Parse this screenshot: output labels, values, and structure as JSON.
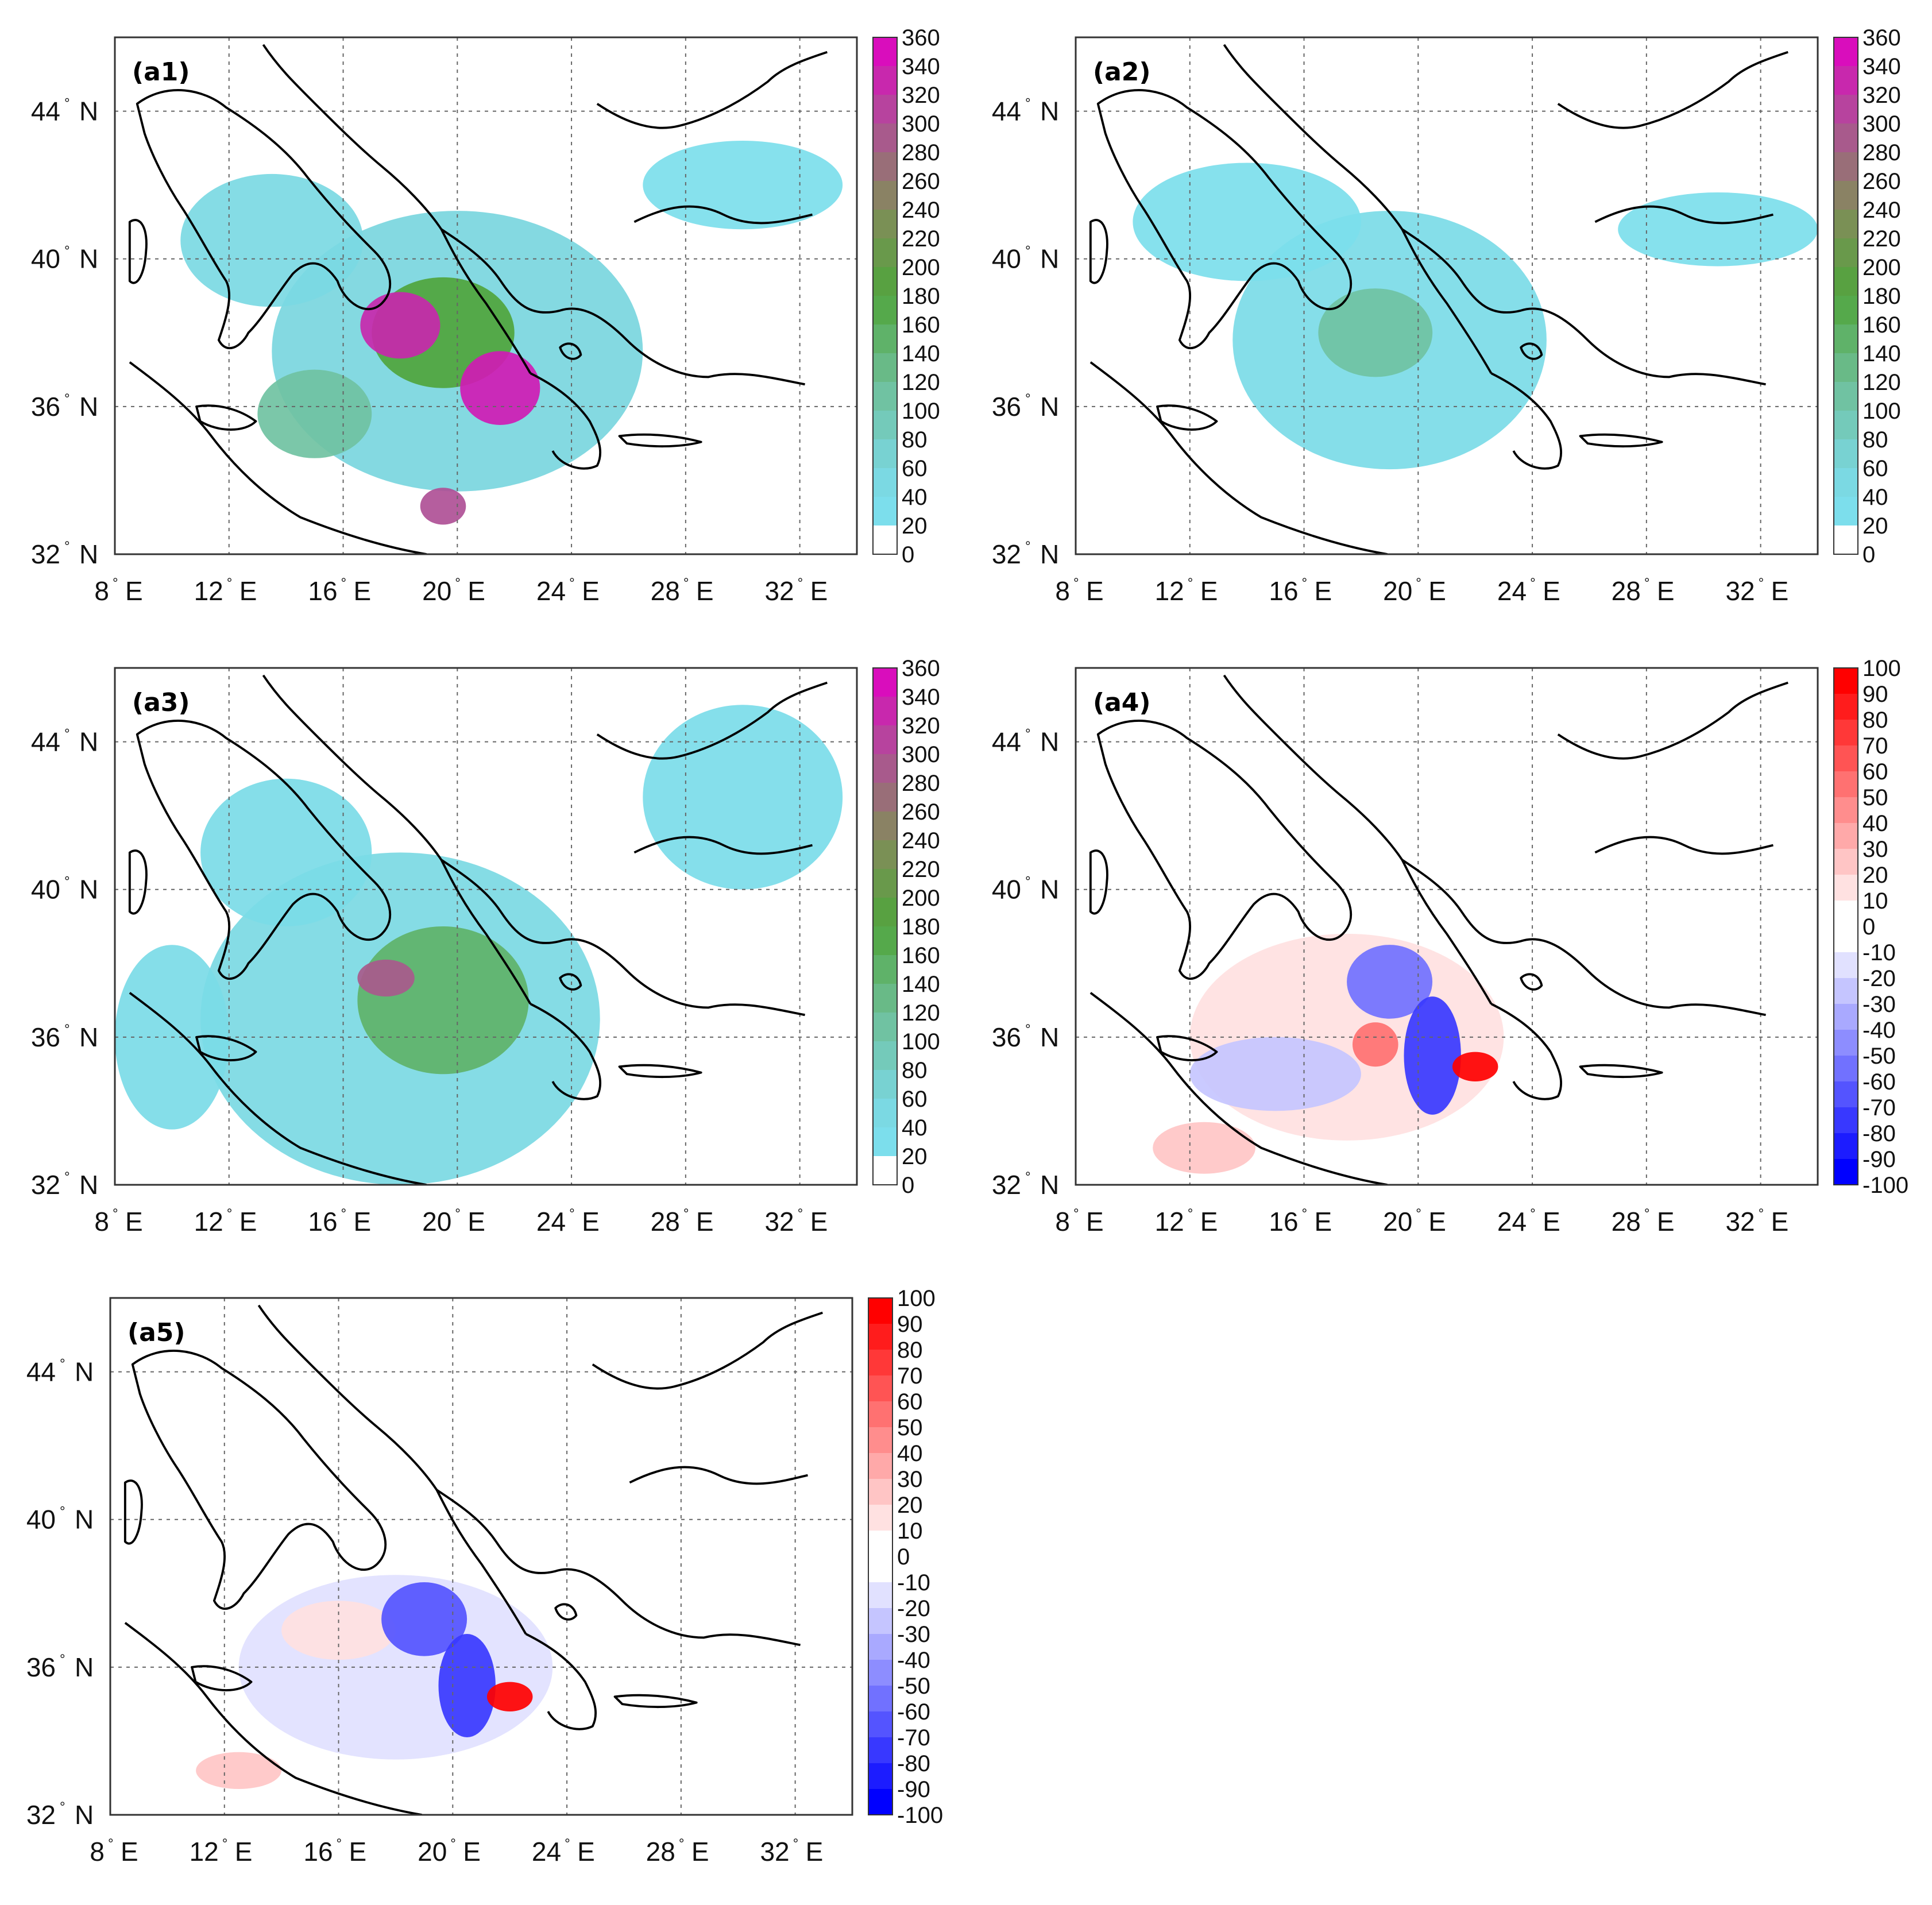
{
  "chart_data": [
    {
      "type": "heatmap",
      "label": "(a1)",
      "xlim": [
        8,
        34
      ],
      "ylim": [
        32,
        46
      ],
      "xticks": [
        {
          "v": 8,
          "text": "8",
          "unit": "E"
        },
        {
          "v": 12,
          "text": "12",
          "unit": "E"
        },
        {
          "v": 16,
          "text": "16",
          "unit": "E"
        },
        {
          "v": 20,
          "text": "20",
          "unit": "E"
        },
        {
          "v": 24,
          "text": "24",
          "unit": "E"
        },
        {
          "v": 28,
          "text": "28",
          "unit": "E"
        },
        {
          "v": 32,
          "text": "32",
          "unit": "E"
        }
      ],
      "yticks": [
        {
          "v": 32,
          "text": "32",
          "unit": "N"
        },
        {
          "v": 36,
          "text": "36",
          "unit": "N"
        },
        {
          "v": 40,
          "text": "40",
          "unit": "N"
        },
        {
          "v": 44,
          "text": "44",
          "unit": "N"
        }
      ],
      "colorbar": {
        "min": 0,
        "max": 360,
        "ticks": [
          "360",
          "340",
          "320",
          "300",
          "280",
          "260",
          "240",
          "220",
          "200",
          "180",
          "160",
          "140",
          "120",
          "100",
          "80",
          "60",
          "40",
          "20",
          "0"
        ],
        "scheme": "precip"
      },
      "features": [
        {
          "lon": 20.0,
          "lat": 37.5,
          "rx": 6.5,
          "ry": 3.8,
          "value": 60
        },
        {
          "lon": 13.5,
          "lat": 40.5,
          "rx": 3.2,
          "ry": 1.8,
          "value": 50
        },
        {
          "lon": 19.5,
          "lat": 38.0,
          "rx": 2.5,
          "ry": 1.5,
          "value": 180
        },
        {
          "lon": 18.0,
          "lat": 38.2,
          "rx": 1.4,
          "ry": 0.9,
          "value": 330
        },
        {
          "lon": 21.5,
          "lat": 36.5,
          "rx": 1.4,
          "ry": 1.0,
          "value": 340
        },
        {
          "lon": 19.5,
          "lat": 33.3,
          "rx": 0.8,
          "ry": 0.5,
          "value": 300
        },
        {
          "lon": 15.0,
          "lat": 35.8,
          "rx": 2.0,
          "ry": 1.2,
          "value": 110
        },
        {
          "lon": 30.0,
          "lat": 42.0,
          "rx": 3.5,
          "ry": 1.2,
          "value": 30
        }
      ]
    },
    {
      "type": "heatmap",
      "label": "(a2)",
      "xlim": [
        8,
        34
      ],
      "ylim": [
        32,
        46
      ],
      "xticks": [
        {
          "v": 8,
          "text": "8",
          "unit": "E"
        },
        {
          "v": 12,
          "text": "12",
          "unit": "E"
        },
        {
          "v": 16,
          "text": "16",
          "unit": "E"
        },
        {
          "v": 20,
          "text": "20",
          "unit": "E"
        },
        {
          "v": 24,
          "text": "24",
          "unit": "E"
        },
        {
          "v": 28,
          "text": "28",
          "unit": "E"
        },
        {
          "v": 32,
          "text": "32",
          "unit": "E"
        }
      ],
      "yticks": [
        {
          "v": 32,
          "text": "32",
          "unit": "N"
        },
        {
          "v": 36,
          "text": "36",
          "unit": "N"
        },
        {
          "v": 40,
          "text": "40",
          "unit": "N"
        },
        {
          "v": 44,
          "text": "44",
          "unit": "N"
        }
      ],
      "colorbar": {
        "min": 0,
        "max": 360,
        "ticks": [
          "360",
          "340",
          "320",
          "300",
          "280",
          "260",
          "240",
          "220",
          "200",
          "180",
          "160",
          "140",
          "120",
          "100",
          "80",
          "60",
          "40",
          "20",
          "0"
        ],
        "scheme": "precip"
      },
      "features": [
        {
          "lon": 19.0,
          "lat": 37.8,
          "rx": 5.5,
          "ry": 3.5,
          "value": 40
        },
        {
          "lon": 14.0,
          "lat": 41.0,
          "rx": 4.0,
          "ry": 1.6,
          "value": 30
        },
        {
          "lon": 18.5,
          "lat": 38.0,
          "rx": 2.0,
          "ry": 1.2,
          "value": 110
        },
        {
          "lon": 30.5,
          "lat": 40.8,
          "rx": 3.5,
          "ry": 1.0,
          "value": 30
        }
      ]
    },
    {
      "type": "heatmap",
      "label": "(a3)",
      "xlim": [
        8,
        34
      ],
      "ylim": [
        32,
        46
      ],
      "xticks": [
        {
          "v": 8,
          "text": "8",
          "unit": "E"
        },
        {
          "v": 12,
          "text": "12",
          "unit": "E"
        },
        {
          "v": 16,
          "text": "16",
          "unit": "E"
        },
        {
          "v": 20,
          "text": "20",
          "unit": "E"
        },
        {
          "v": 24,
          "text": "24",
          "unit": "E"
        },
        {
          "v": 28,
          "text": "28",
          "unit": "E"
        },
        {
          "v": 32,
          "text": "32",
          "unit": "E"
        }
      ],
      "yticks": [
        {
          "v": 32,
          "text": "32",
          "unit": "N"
        },
        {
          "v": 36,
          "text": "36",
          "unit": "N"
        },
        {
          "v": 40,
          "text": "40",
          "unit": "N"
        },
        {
          "v": 44,
          "text": "44",
          "unit": "N"
        }
      ],
      "colorbar": {
        "min": 0,
        "max": 360,
        "ticks": [
          "360",
          "340",
          "320",
          "300",
          "280",
          "260",
          "240",
          "220",
          "200",
          "180",
          "160",
          "140",
          "120",
          "100",
          "80",
          "60",
          "40",
          "20",
          "0"
        ],
        "scheme": "precip"
      },
      "features": [
        {
          "lon": 18.0,
          "lat": 36.5,
          "rx": 7.0,
          "ry": 4.5,
          "value": 50
        },
        {
          "lon": 14.0,
          "lat": 41.0,
          "rx": 3.0,
          "ry": 2.0,
          "value": 40
        },
        {
          "lon": 19.5,
          "lat": 37.0,
          "rx": 3.0,
          "ry": 2.0,
          "value": 150
        },
        {
          "lon": 17.5,
          "lat": 37.6,
          "rx": 1.0,
          "ry": 0.5,
          "value": 290
        },
        {
          "lon": 30.0,
          "lat": 42.5,
          "rx": 3.5,
          "ry": 2.5,
          "value": 35
        },
        {
          "lon": 10.0,
          "lat": 36.0,
          "rx": 2.0,
          "ry": 2.5,
          "value": 40
        }
      ]
    },
    {
      "type": "heatmap",
      "label": "(a4)",
      "xlim": [
        8,
        34
      ],
      "ylim": [
        32,
        46
      ],
      "xticks": [
        {
          "v": 8,
          "text": "8",
          "unit": "E"
        },
        {
          "v": 12,
          "text": "12",
          "unit": "E"
        },
        {
          "v": 16,
          "text": "16",
          "unit": "E"
        },
        {
          "v": 20,
          "text": "20",
          "unit": "E"
        },
        {
          "v": 24,
          "text": "24",
          "unit": "E"
        },
        {
          "v": 28,
          "text": "28",
          "unit": "E"
        },
        {
          "v": 32,
          "text": "32",
          "unit": "E"
        }
      ],
      "yticks": [
        {
          "v": 32,
          "text": "32",
          "unit": "N"
        },
        {
          "v": 36,
          "text": "36",
          "unit": "N"
        },
        {
          "v": 40,
          "text": "40",
          "unit": "N"
        },
        {
          "v": 44,
          "text": "44",
          "unit": "N"
        }
      ],
      "colorbar": {
        "min": -100,
        "max": 100,
        "ticks": [
          "100",
          "90",
          "80",
          "70",
          "60",
          "50",
          "40",
          "30",
          "20",
          "10",
          "0",
          "-10",
          "-20",
          "-30",
          "-40",
          "-50",
          "-60",
          "-70",
          "-80",
          "-90",
          "-100"
        ],
        "scheme": "diverging"
      },
      "features": [
        {
          "lon": 17.5,
          "lat": 36.0,
          "rx": 5.5,
          "ry": 2.8,
          "value": 15
        },
        {
          "lon": 15.0,
          "lat": 35.0,
          "rx": 3.0,
          "ry": 1.0,
          "value": -20
        },
        {
          "lon": 19.0,
          "lat": 37.5,
          "rx": 1.5,
          "ry": 1.0,
          "value": -50
        },
        {
          "lon": 20.5,
          "lat": 35.5,
          "rx": 1.0,
          "ry": 1.6,
          "value": -70
        },
        {
          "lon": 22.0,
          "lat": 35.2,
          "rx": 0.8,
          "ry": 0.4,
          "value": 90
        },
        {
          "lon": 18.5,
          "lat": 35.8,
          "rx": 0.8,
          "ry": 0.6,
          "value": 50
        },
        {
          "lon": 12.5,
          "lat": 33.0,
          "rx": 1.8,
          "ry": 0.7,
          "value": 20
        }
      ]
    },
    {
      "type": "heatmap",
      "label": "(a5)",
      "xlim": [
        8,
        34
      ],
      "ylim": [
        32,
        46
      ],
      "xticks": [
        {
          "v": 8,
          "text": "8",
          "unit": "E"
        },
        {
          "v": 12,
          "text": "12",
          "unit": "E"
        },
        {
          "v": 16,
          "text": "16",
          "unit": "E"
        },
        {
          "v": 20,
          "text": "20",
          "unit": "E"
        },
        {
          "v": 24,
          "text": "24",
          "unit": "E"
        },
        {
          "v": 28,
          "text": "28",
          "unit": "E"
        },
        {
          "v": 32,
          "text": "32",
          "unit": "E"
        }
      ],
      "yticks": [
        {
          "v": 32,
          "text": "32",
          "unit": "N"
        },
        {
          "v": 36,
          "text": "36",
          "unit": "N"
        },
        {
          "v": 40,
          "text": "40",
          "unit": "N"
        },
        {
          "v": 44,
          "text": "44",
          "unit": "N"
        }
      ],
      "colorbar": {
        "min": -100,
        "max": 100,
        "ticks": [
          "100",
          "90",
          "80",
          "70",
          "60",
          "50",
          "40",
          "30",
          "20",
          "10",
          "0",
          "-10",
          "-20",
          "-30",
          "-40",
          "-50",
          "-60",
          "-70",
          "-80",
          "-90",
          "-100"
        ],
        "scheme": "diverging"
      },
      "features": [
        {
          "lon": 18.0,
          "lat": 36.0,
          "rx": 5.5,
          "ry": 2.5,
          "value": -15
        },
        {
          "lon": 16.0,
          "lat": 37.0,
          "rx": 2.0,
          "ry": 0.8,
          "value": 15
        },
        {
          "lon": 19.0,
          "lat": 37.3,
          "rx": 1.5,
          "ry": 1.0,
          "value": -60
        },
        {
          "lon": 20.5,
          "lat": 35.5,
          "rx": 1.0,
          "ry": 1.4,
          "value": -75
        },
        {
          "lon": 22.0,
          "lat": 35.2,
          "rx": 0.8,
          "ry": 0.4,
          "value": 95
        },
        {
          "lon": 12.5,
          "lat": 33.2,
          "rx": 1.5,
          "ry": 0.5,
          "value": 20
        }
      ]
    }
  ]
}
